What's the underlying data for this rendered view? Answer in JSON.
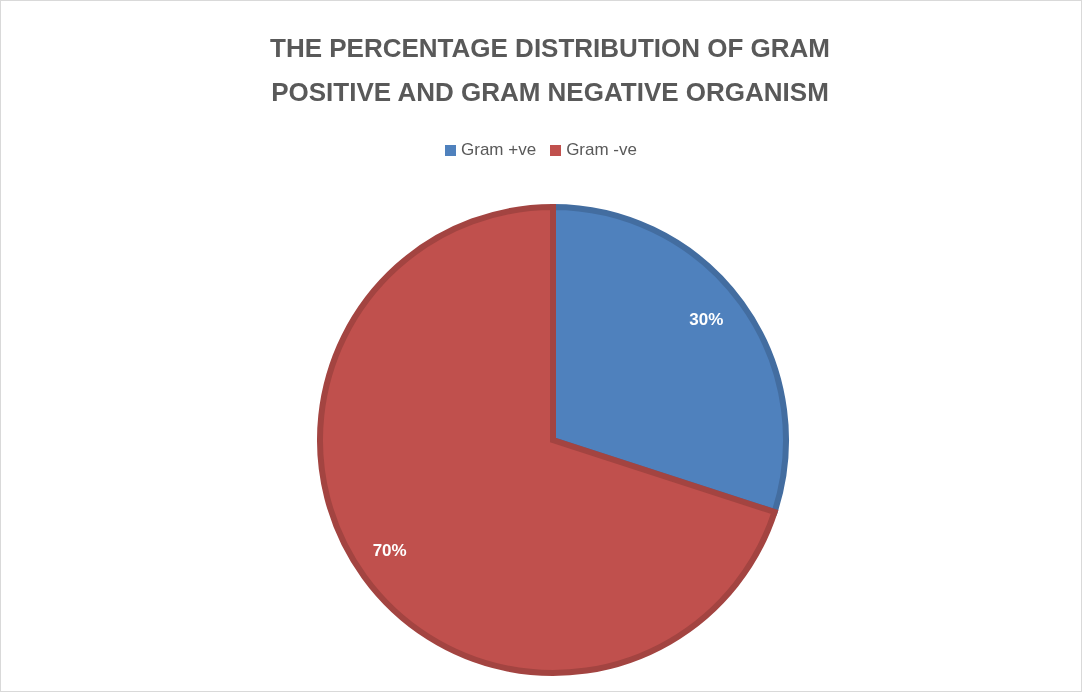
{
  "chart_data": {
    "type": "pie",
    "title": "THE PERCENTAGE DISTRIBUTION OF GRAM POSITIVE AND GRAM NEGATIVE ORGANISM",
    "categories": [
      "Gram +ve",
      "Gram -ve"
    ],
    "values": [
      30,
      70
    ],
    "colors": [
      "#4f81bd",
      "#c0504d"
    ],
    "value_labels": [
      "30%",
      "70%"
    ],
    "legend": "top"
  }
}
